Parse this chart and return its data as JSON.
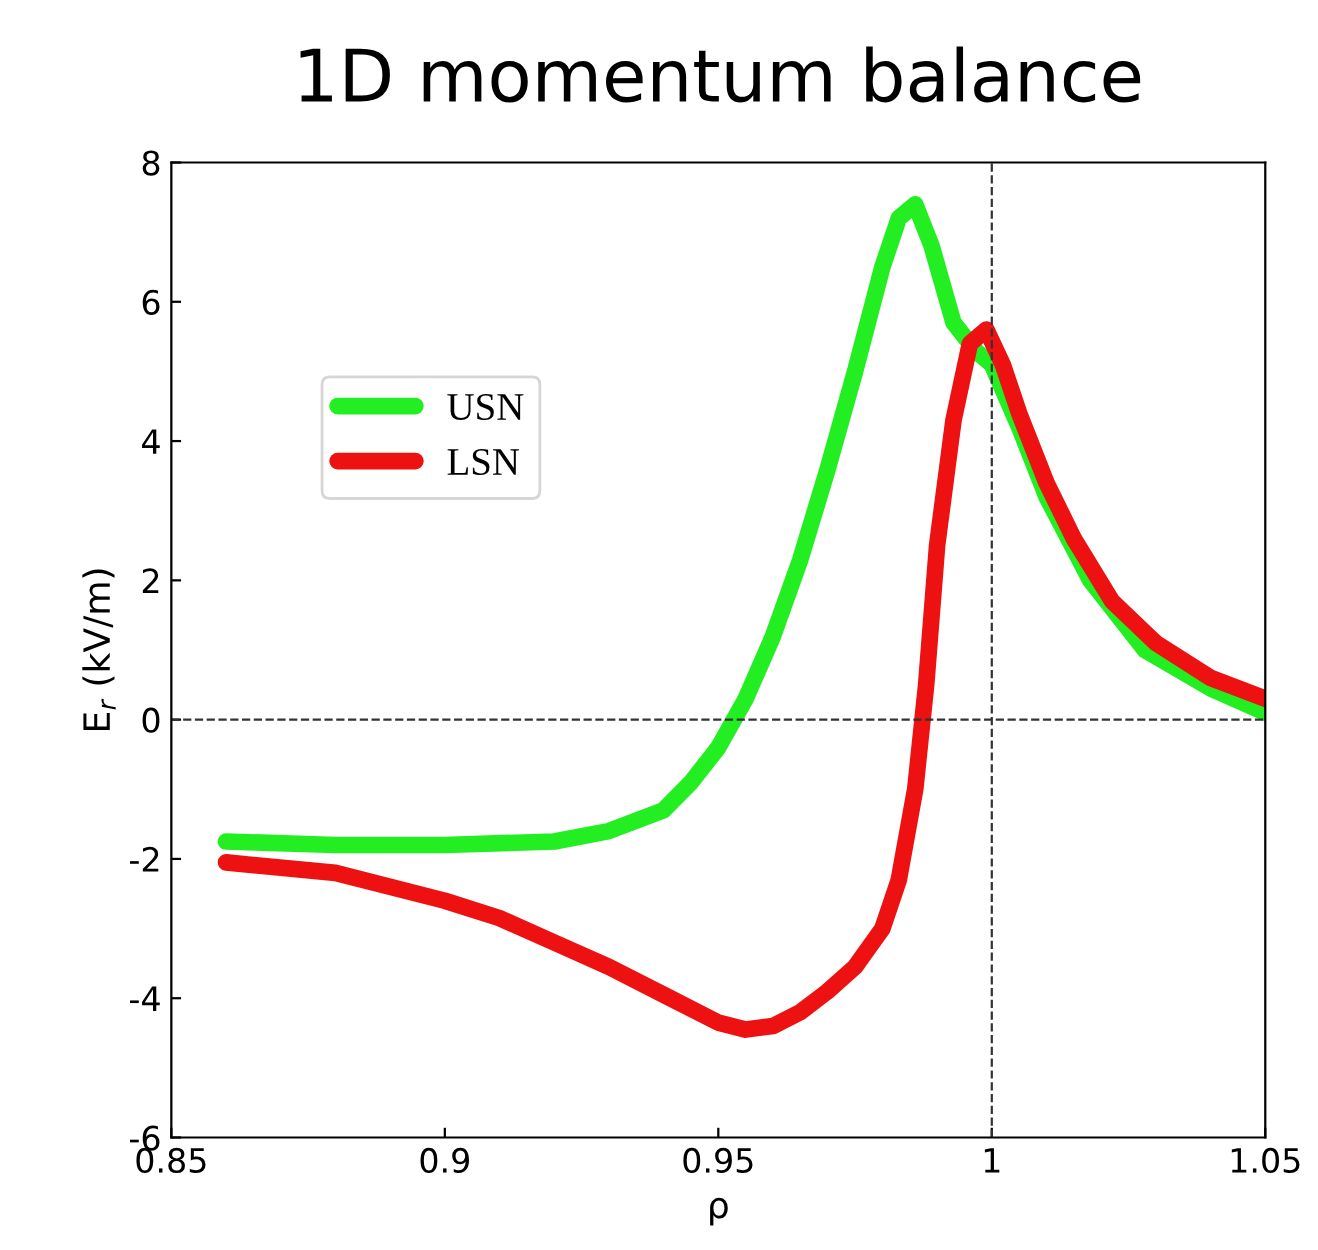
{
  "chart_data": {
    "type": "line",
    "title": "1D momentum balance",
    "xlabel": "ρ",
    "ylabel": "E$_{r}$ (kV/m)",
    "xlim": [
      0.85,
      1.05
    ],
    "xticks": [
      0.85,
      0.9,
      0.95,
      1,
      1.05
    ],
    "ylim": [
      -6,
      8
    ],
    "yticks": [
      -6,
      -4,
      -2,
      0,
      2,
      4,
      6,
      8
    ],
    "grid": false,
    "legend": "upper left",
    "marker": "none",
    "line_style": "solid",
    "ref_lines": [
      {
        "axis": "y",
        "value": 0,
        "line_style": "dashed",
        "color": "#333333"
      },
      {
        "axis": "x",
        "value": 1,
        "line_style": "dashed",
        "color": "#333333"
      }
    ],
    "series": [
      {
        "name": "USN",
        "color": "#22ee22",
        "x": [
          0.86,
          0.88,
          0.9,
          0.92,
          0.93,
          0.94,
          0.945,
          0.95,
          0.955,
          0.96,
          0.965,
          0.97,
          0.975,
          0.98,
          0.983,
          0.986,
          0.989,
          0.993,
          0.997,
          1.0,
          1.005,
          1.01,
          1.018,
          1.028,
          1.04,
          1.05
        ],
        "values": [
          -1.75,
          -1.8,
          -1.8,
          -1.75,
          -1.6,
          -1.3,
          -0.9,
          -0.4,
          0.3,
          1.2,
          2.3,
          3.6,
          5.0,
          6.5,
          7.2,
          7.4,
          6.8,
          5.7,
          5.3,
          5.1,
          4.2,
          3.2,
          2.0,
          1.0,
          0.45,
          0.1
        ]
      },
      {
        "name": "LSN",
        "color": "#ee1111",
        "x": [
          0.86,
          0.88,
          0.9,
          0.91,
          0.92,
          0.93,
          0.94,
          0.95,
          0.955,
          0.96,
          0.965,
          0.97,
          0.975,
          0.98,
          0.983,
          0.986,
          0.988,
          0.99,
          0.993,
          0.996,
          0.999,
          1.002,
          1.005,
          1.01,
          1.015,
          1.022,
          1.03,
          1.04,
          1.05
        ],
        "values": [
          -2.05,
          -2.2,
          -2.6,
          -2.85,
          -3.2,
          -3.55,
          -3.95,
          -4.35,
          -4.45,
          -4.4,
          -4.2,
          -3.9,
          -3.55,
          -3.0,
          -2.3,
          -1.0,
          0.5,
          2.5,
          4.3,
          5.4,
          5.6,
          5.1,
          4.4,
          3.4,
          2.6,
          1.7,
          1.1,
          0.6,
          0.3
        ]
      }
    ]
  }
}
